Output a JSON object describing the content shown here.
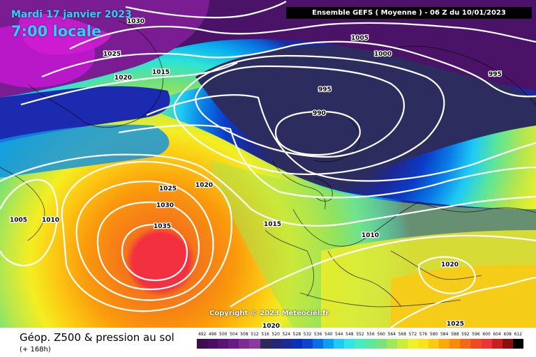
{
  "header": {
    "date": "Mardi 17 janvier 2023",
    "time": "7:00 locale",
    "run": "Ensemble GEFS  ( Moyenne )  -  06 Z du 10/01/2023"
  },
  "copyright": "Copyright © 2023 Meteociel.fr",
  "footer": {
    "title": "Géop. Z500 & pression au sol",
    "subtitle": "(+ 168h)"
  },
  "isobar_labels": [
    "1030",
    "1025",
    "1020",
    "1015",
    "1005",
    "1000",
    "995",
    "995",
    "990",
    "1025",
    "1020",
    "1030",
    "1035",
    "1005",
    "1010",
    "1015",
    "1010",
    "1020",
    "1020",
    "1025"
  ],
  "legend": {
    "values": [
      "492",
      "496",
      "500",
      "504",
      "508",
      "512",
      "516",
      "520",
      "524",
      "528",
      "532",
      "536",
      "540",
      "544",
      "548",
      "552",
      "556",
      "560",
      "564",
      "568",
      "572",
      "576",
      "580",
      "584",
      "588",
      "592",
      "596",
      "600",
      "604",
      "608",
      "612"
    ],
    "colors": [
      "#3c0d4d",
      "#4a0d64",
      "#5a1277",
      "#6a1a88",
      "#7d2c94",
      "#8a3aa0",
      "#2d2a5a",
      "#232874",
      "#1c2a96",
      "#0a2fb8",
      "#0a44d2",
      "#0a6ee6",
      "#0aa0f2",
      "#1ecaf6",
      "#32e4e8",
      "#46ecbe",
      "#5ae89a",
      "#7ae27a",
      "#a2e65a",
      "#c8ee3c",
      "#eef228",
      "#fae31c",
      "#fcc812",
      "#fca80c",
      "#fa8a0a",
      "#f46a12",
      "#f04a22",
      "#ec3432",
      "#c81e1e",
      "#8c0e0e",
      "#000000"
    ]
  }
}
